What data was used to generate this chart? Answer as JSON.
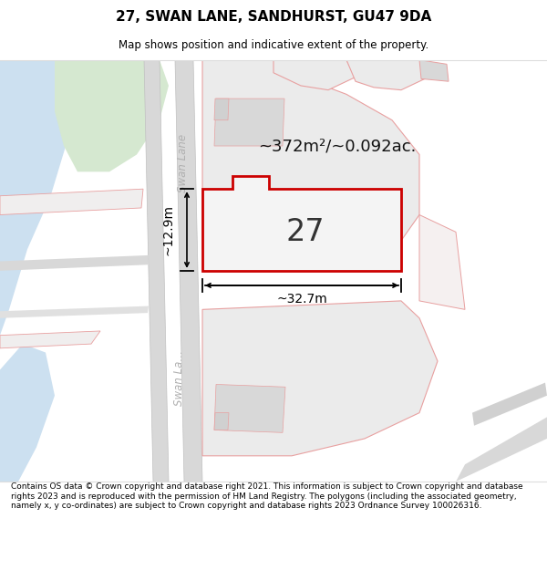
{
  "title": "27, SWAN LANE, SANDHURST, GU47 9DA",
  "subtitle": "Map shows position and indicative extent of the property.",
  "area_text": "~372m²/~0.092ac.",
  "number_label": "27",
  "width_label": "~32.7m",
  "height_label": "~12.9m",
  "footer_text": "Contains OS data © Crown copyright and database right 2021. This information is subject to Crown copyright and database rights 2023 and is reproduced with the permission of HM Land Registry. The polygons (including the associated geometry, namely x, y co-ordinates) are subject to Crown copyright and database rights 2023 Ordnance Survey 100026316.",
  "bg_color": "#ffffff",
  "map_bg": "#ffffff",
  "road_color": "#d8d8d8",
  "water_color": "#cce0f0",
  "green_color": "#d5e8d0",
  "property_fill": "#f0f0f0",
  "property_border": "#cc0000",
  "neighbor_fill": "#ebebeb",
  "neighbor_border": "#e8a0a0",
  "road_label_color": "#b0b0b0",
  "dimension_color": "#000000",
  "title_fontsize": 11,
  "subtitle_fontsize": 8.5,
  "footer_fontsize": 6.5
}
